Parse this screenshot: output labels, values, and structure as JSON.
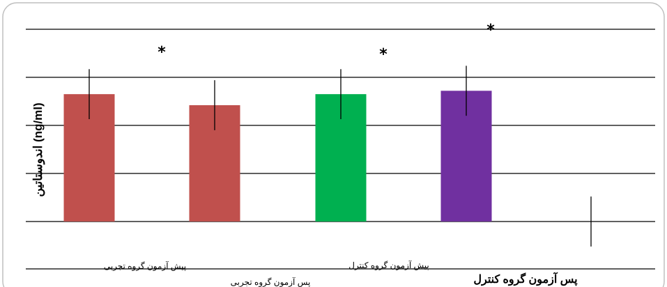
{
  "chart_data": {
    "type": "bar",
    "ylabel": "اندوستاتین (ng/ml)",
    "ylim": [
      0,
      4
    ],
    "grid": true,
    "colors": {
      "bar_experimental": "#c0504d",
      "bar_control_pre": "#00b050",
      "bar_control_post": "#7030a0",
      "gridline": "#000000",
      "frame": "#bfbfbf"
    },
    "bars": [
      {
        "label": "پیش آزمون گروه تجربی",
        "value": 2.65,
        "error": 0.52,
        "color": "#c0504d",
        "significant": false
      },
      {
        "label": "پس آزمون گروه تجربی",
        "value": 2.42,
        "error": 0.52,
        "color": "#c0504d",
        "significant": true
      },
      {
        "label": "پیش آزمون گروه کنترل",
        "value": 2.65,
        "error": 0.52,
        "color": "#00b050",
        "significant": true
      },
      {
        "label": "پس آزمون گروه کنترل",
        "value": 2.72,
        "error": 0.52,
        "color": "#7030a0",
        "significant": true
      }
    ],
    "extra_errorbar": {
      "value": 0,
      "error": 0.52
    },
    "significance_symbol": "*"
  }
}
